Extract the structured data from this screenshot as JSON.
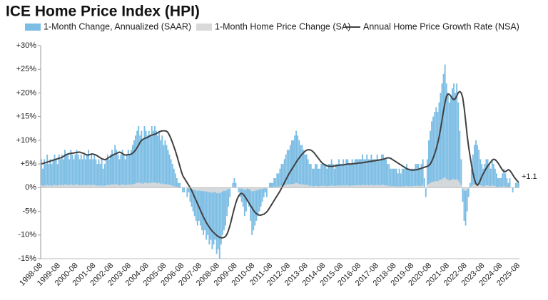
{
  "chart_data": {
    "type": "bar",
    "title": "ICE Home Price Index (HPI)",
    "categories": [
      "1998-08",
      null,
      null,
      null,
      null,
      null,
      null,
      null,
      null,
      null,
      null,
      null,
      "1999-08",
      null,
      null,
      null,
      null,
      null,
      null,
      null,
      null,
      null,
      null,
      null,
      "2000-08",
      null,
      null,
      null,
      null,
      null,
      null,
      null,
      null,
      null,
      null,
      null,
      "2001-08",
      null,
      null,
      null,
      null,
      null,
      null,
      null,
      null,
      null,
      null,
      null,
      "2002-08",
      null,
      null,
      null,
      null,
      null,
      null,
      null,
      null,
      null,
      null,
      null,
      "2003-08",
      null,
      null,
      null,
      null,
      null,
      null,
      null,
      null,
      null,
      null,
      null,
      "2004-08",
      null,
      null,
      null,
      null,
      null,
      null,
      null,
      null,
      null,
      null,
      null,
      "2005-08",
      null,
      null,
      null,
      null,
      null,
      null,
      null,
      null,
      null,
      null,
      null,
      "2006-08",
      null,
      null,
      null,
      null,
      null,
      null,
      null,
      null,
      null,
      null,
      null,
      "2007-08",
      null,
      null,
      null,
      null,
      null,
      null,
      null,
      null,
      null,
      null,
      null,
      "2008-08",
      null,
      null,
      null,
      null,
      null,
      null,
      null,
      null,
      null,
      null,
      null,
      "2009-08",
      null,
      null,
      null,
      null,
      null,
      null,
      null,
      null,
      null,
      null,
      null,
      "2010-08",
      null,
      null,
      null,
      null,
      null,
      null,
      null,
      null,
      null,
      null,
      null,
      "2011-08",
      null,
      null,
      null,
      null,
      null,
      null,
      null,
      null,
      null,
      null,
      null,
      "2012-08",
      null,
      null,
      null,
      null,
      null,
      null,
      null,
      null,
      null,
      null,
      null,
      "2013-08",
      null,
      null,
      null,
      null,
      null,
      null,
      null,
      null,
      null,
      null,
      null,
      "2014-08",
      null,
      null,
      null,
      null,
      null,
      null,
      null,
      null,
      null,
      null,
      null,
      "2015-08",
      null,
      null,
      null,
      null,
      null,
      null,
      null,
      null,
      null,
      null,
      null,
      "2016-08",
      null,
      null,
      null,
      null,
      null,
      null,
      null,
      null,
      null,
      null,
      null,
      "2017-08",
      null,
      null,
      null,
      null,
      null,
      null,
      null,
      null,
      null,
      null,
      null,
      "2018-08",
      null,
      null,
      null,
      null,
      null,
      null,
      null,
      null,
      null,
      null,
      null,
      "2019-08",
      null,
      null,
      null,
      null,
      null,
      null,
      null,
      null,
      null,
      null,
      null,
      "2020-08",
      null,
      null,
      null,
      null,
      null,
      null,
      null,
      null,
      null,
      null,
      null,
      "2021-08",
      null,
      null,
      null,
      null,
      null,
      null,
      null,
      null,
      null,
      null,
      null,
      "2022-08",
      null,
      null,
      null,
      null,
      null,
      null,
      null,
      null,
      null,
      null,
      null,
      "2023-08",
      null,
      null,
      null,
      null,
      null,
      null,
      null,
      null,
      null,
      null,
      null,
      "2024-08",
      null,
      null,
      null,
      null,
      null,
      null,
      null,
      null,
      null,
      null,
      null,
      "2025-08"
    ],
    "series": [
      {
        "name": "1-Month Change, Annualized (SAAR)",
        "type": "bar",
        "color": "#7cbde4",
        "values": [
          6,
          4,
          6,
          5,
          7,
          5,
          6,
          5,
          6,
          7,
          6,
          5,
          7,
          6,
          7,
          6,
          8,
          7,
          7,
          6,
          8,
          7,
          6,
          7,
          8,
          7,
          6,
          7,
          6,
          7,
          6,
          7,
          8,
          6,
          7,
          6,
          7,
          6,
          5,
          6,
          5,
          6,
          4,
          5,
          6,
          7,
          6,
          7,
          8,
          7,
          9,
          8,
          7,
          6,
          7,
          8,
          7,
          6,
          7,
          8,
          7,
          8,
          9,
          10,
          11,
          12,
          13,
          11,
          12,
          10,
          13,
          12,
          11,
          12,
          11,
          13,
          12,
          13,
          12,
          11,
          12,
          10,
          11,
          9,
          10,
          9,
          8,
          7,
          6,
          5,
          4,
          3,
          2,
          1,
          1,
          0,
          -1,
          -1,
          0,
          -2,
          -1,
          -3,
          -4,
          -5,
          -6,
          -7,
          -8,
          -7,
          -8,
          -9,
          -10,
          -9,
          -11,
          -10,
          -12,
          -11,
          -13,
          -12,
          -11,
          -14,
          -13,
          -15,
          -12,
          -10,
          -9,
          -8,
          -6,
          -4,
          -2,
          0,
          1,
          2,
          1,
          0,
          -1,
          -2,
          -3,
          -4,
          -6,
          -5,
          -3,
          -4,
          -7,
          -10,
          -9,
          -8,
          -7,
          -6,
          -5,
          -4,
          -3,
          -2,
          -1,
          -2,
          0,
          1,
          1,
          1,
          2,
          2,
          3,
          3,
          4,
          5,
          5,
          6,
          7,
          8,
          8,
          9,
          10,
          10,
          11,
          12,
          11,
          10,
          9,
          9,
          8,
          7,
          7,
          6,
          5,
          5,
          4,
          4,
          5,
          5,
          4,
          4,
          5,
          5,
          5,
          5,
          4,
          5,
          5,
          6,
          5,
          4,
          5,
          5,
          6,
          5,
          5,
          6,
          5,
          6,
          6,
          5,
          5,
          6,
          5,
          6,
          6,
          6,
          6,
          6,
          7,
          6,
          6,
          7,
          6,
          6,
          7,
          6,
          6,
          6,
          7,
          6,
          6,
          7,
          7,
          6,
          6,
          5,
          5,
          4,
          4,
          4,
          4,
          4,
          3,
          4,
          3,
          4,
          4,
          4,
          5,
          4,
          4,
          4,
          4,
          4,
          5,
          5,
          5,
          4,
          5,
          6,
          2,
          -2,
          6,
          10,
          12,
          14,
          15,
          16,
          17,
          16,
          18,
          20,
          22,
          24,
          26,
          22,
          20,
          18,
          19,
          21,
          22,
          20,
          22,
          18,
          12,
          6,
          -3,
          -7,
          -8,
          -5,
          -2,
          1,
          4,
          7,
          9,
          10,
          9,
          8,
          6,
          5,
          4,
          5,
          6,
          6,
          5,
          4,
          6,
          5,
          4,
          3,
          2,
          2,
          2,
          3,
          4,
          3,
          2,
          1,
          2,
          0,
          -1,
          0,
          1,
          1,
          1
        ]
      },
      {
        "name": "1-Month Home Price Change (SA)",
        "type": "bar",
        "color": "#d9d9d9",
        "values": [
          0.5,
          0.3,
          0.5,
          0.4,
          0.6,
          0.4,
          0.5,
          0.4,
          0.5,
          0.6,
          0.5,
          0.4,
          0.6,
          0.5,
          0.6,
          0.5,
          0.7,
          0.6,
          0.6,
          0.5,
          0.7,
          0.6,
          0.5,
          0.6,
          0.7,
          0.6,
          0.5,
          0.6,
          0.5,
          0.6,
          0.5,
          0.6,
          0.7,
          0.5,
          0.6,
          0.5,
          0.6,
          0.5,
          0.4,
          0.5,
          0.4,
          0.5,
          0.3,
          0.4,
          0.5,
          0.6,
          0.5,
          0.6,
          0.7,
          0.6,
          0.7,
          0.7,
          0.6,
          0.5,
          0.6,
          0.7,
          0.6,
          0.5,
          0.6,
          0.7,
          0.6,
          0.7,
          0.7,
          0.8,
          0.9,
          1.0,
          1.1,
          0.9,
          1.0,
          0.8,
          1.1,
          1.0,
          0.9,
          1.0,
          0.9,
          1.1,
          1.0,
          1.1,
          1.0,
          0.9,
          1.0,
          0.8,
          0.9,
          0.7,
          0.8,
          0.7,
          0.7,
          0.6,
          0.5,
          0.4,
          0.3,
          0.2,
          0.2,
          0.1,
          0.1,
          0,
          -0.1,
          -0.1,
          0,
          -0.2,
          -0.1,
          -0.2,
          -0.3,
          -0.4,
          -0.5,
          -0.6,
          -0.7,
          -0.6,
          -0.7,
          -0.7,
          -0.8,
          -0.7,
          -0.9,
          -0.8,
          -1.0,
          -0.9,
          -1.1,
          -1.0,
          -0.9,
          -1.2,
          -1.1,
          -1.2,
          -1.0,
          -0.8,
          -0.7,
          -0.7,
          -0.5,
          -0.3,
          -0.2,
          0,
          0.1,
          0.2,
          0.1,
          0,
          -0.1,
          -0.2,
          -0.2,
          -0.3,
          -0.5,
          -0.4,
          -0.2,
          -0.3,
          -0.6,
          -0.8,
          -0.7,
          -0.7,
          -0.6,
          -0.5,
          -0.4,
          -0.3,
          -0.2,
          -0.2,
          -0.1,
          -0.2,
          0,
          0.1,
          0.1,
          0.1,
          0.2,
          0.2,
          0.2,
          0.2,
          0.3,
          0.4,
          0.4,
          0.5,
          0.6,
          0.7,
          0.7,
          0.7,
          0.8,
          0.8,
          0.9,
          1.0,
          0.9,
          0.8,
          0.7,
          0.7,
          0.7,
          0.6,
          0.6,
          0.5,
          0.4,
          0.4,
          0.3,
          0.3,
          0.4,
          0.4,
          0.3,
          0.3,
          0.4,
          0.4,
          0.4,
          0.4,
          0.3,
          0.4,
          0.4,
          0.5,
          0.4,
          0.3,
          0.4,
          0.4,
          0.5,
          0.4,
          0.4,
          0.5,
          0.4,
          0.5,
          0.5,
          0.4,
          0.4,
          0.5,
          0.4,
          0.5,
          0.5,
          0.5,
          0.5,
          0.5,
          0.6,
          0.5,
          0.5,
          0.6,
          0.5,
          0.5,
          0.6,
          0.5,
          0.5,
          0.5,
          0.6,
          0.5,
          0.5,
          0.6,
          0.6,
          0.5,
          0.5,
          0.4,
          0.4,
          0.3,
          0.3,
          0.3,
          0.3,
          0.3,
          0.2,
          0.3,
          0.2,
          0.3,
          0.3,
          0.3,
          0.4,
          0.3,
          0.3,
          0.3,
          0.3,
          0.3,
          0.4,
          0.4,
          0.4,
          0.3,
          0.4,
          0.5,
          0.2,
          -0.2,
          0.5,
          0.8,
          1.0,
          1.2,
          1.2,
          1.3,
          1.4,
          1.3,
          1.5,
          1.7,
          1.8,
          2.0,
          2.2,
          1.8,
          1.7,
          1.5,
          1.6,
          1.8,
          1.8,
          1.7,
          1.8,
          1.5,
          1.0,
          0.5,
          -0.2,
          -0.6,
          -0.7,
          -0.4,
          -0.2,
          0.1,
          0.3,
          0.6,
          0.7,
          0.8,
          0.7,
          0.7,
          0.5,
          0.4,
          0.3,
          0.4,
          0.5,
          0.5,
          0.4,
          0.3,
          0.5,
          0.4,
          0.3,
          0.2,
          0.2,
          0.2,
          0.2,
          0.2,
          0.3,
          0.2,
          0.2,
          0.1,
          0.2,
          0,
          -0.1,
          0,
          0.1,
          0.1,
          0.1
        ]
      },
      {
        "name": "Annual Home Price Growth Rate (NSA)",
        "type": "line",
        "color": "#404040",
        "values": [
          5.0,
          5.1,
          5.2,
          5.3,
          5.4,
          5.5,
          5.6,
          5.7,
          5.8,
          5.9,
          6.0,
          6.1,
          6.2,
          6.3,
          6.4,
          6.6,
          6.8,
          7.0,
          7.1,
          7.2,
          7.2,
          7.3,
          7.3,
          7.4,
          7.4,
          7.5,
          7.5,
          7.4,
          7.3,
          7.2,
          7.0,
          6.9,
          6.9,
          7.0,
          7.1,
          7.1,
          7.0,
          6.9,
          6.7,
          6.5,
          6.3,
          6.1,
          6.0,
          5.9,
          6.0,
          6.2,
          6.4,
          6.6,
          6.8,
          7.0,
          7.1,
          7.2,
          7.4,
          7.5,
          7.4,
          7.2,
          7.0,
          6.9,
          6.9,
          7.0,
          7.0,
          7.1,
          7.3,
          7.6,
          8.0,
          8.5,
          9.0,
          9.6,
          10.0,
          10.2,
          10.4,
          10.5,
          10.6,
          10.8,
          11.0,
          11.1,
          11.2,
          11.3,
          11.4,
          11.6,
          11.8,
          11.9,
          12.0,
          12.0,
          12.0,
          11.9,
          11.6,
          11.0,
          10.3,
          9.5,
          8.6,
          7.7,
          6.7,
          5.6,
          4.5,
          3.4,
          2.5,
          2.0,
          1.5,
          1.0,
          0.5,
          0.0,
          -0.6,
          -1.3,
          -2.0,
          -2.7,
          -3.4,
          -4.1,
          -4.8,
          -5.5,
          -6.2,
          -6.8,
          -7.4,
          -7.9,
          -8.4,
          -8.8,
          -9.2,
          -9.5,
          -9.8,
          -10.1,
          -10.3,
          -10.5,
          -10.6,
          -10.6,
          -10.5,
          -10.3,
          -9.8,
          -9.0,
          -8.0,
          -6.8,
          -5.5,
          -4.3,
          -3.2,
          -2.3,
          -1.7,
          -1.3,
          -1.2,
          -1.4,
          -1.8,
          -2.3,
          -2.8,
          -3.3,
          -3.8,
          -4.3,
          -4.8,
          -5.2,
          -5.5,
          -5.7,
          -5.8,
          -5.8,
          -5.7,
          -5.6,
          -5.4,
          -5.1,
          -4.7,
          -4.2,
          -3.7,
          -3.2,
          -2.7,
          -2.2,
          -1.7,
          -1.2,
          -0.7,
          -0.1,
          0.5,
          1.1,
          1.7,
          2.3,
          2.9,
          3.4,
          3.9,
          4.4,
          4.9,
          5.4,
          5.9,
          6.3,
          6.7,
          7.1,
          7.4,
          7.7,
          7.9,
          8.0,
          8.0,
          7.9,
          7.7,
          7.4,
          7.0,
          6.6,
          6.2,
          5.8,
          5.4,
          5.1,
          4.9,
          4.7,
          4.6,
          4.5,
          4.5,
          4.5,
          4.5,
          4.6,
          4.6,
          4.7,
          4.7,
          4.8,
          4.8,
          4.8,
          4.9,
          4.9,
          5.0,
          5.0,
          5.0,
          5.0,
          5.1,
          5.1,
          5.1,
          5.2,
          5.2,
          5.2,
          5.3,
          5.3,
          5.4,
          5.4,
          5.5,
          5.5,
          5.6,
          5.6,
          5.7,
          5.7,
          5.8,
          5.8,
          5.9,
          5.9,
          6.0,
          6.1,
          6.2,
          6.3,
          6.3,
          6.2,
          6.0,
          5.8,
          5.6,
          5.4,
          5.2,
          5.0,
          4.8,
          4.6,
          4.4,
          4.2,
          4.0,
          3.9,
          3.8,
          3.7,
          3.7,
          3.7,
          3.8,
          3.8,
          3.9,
          4.0,
          4.1,
          4.2,
          4.3,
          4.4,
          4.5,
          4.7,
          5.0,
          5.6,
          6.3,
          7.2,
          8.2,
          9.4,
          10.8,
          12.5,
          14.4,
          16.3,
          18.0,
          19.3,
          19.8,
          19.7,
          19.3,
          18.8,
          18.6,
          18.8,
          19.4,
          20.1,
          20.3,
          20.0,
          19.0,
          16.8,
          14.0,
          11.0,
          8.6,
          6.6,
          4.7,
          3.0,
          1.7,
          0.8,
          0.5,
          0.9,
          1.6,
          2.4,
          3.0,
          3.6,
          4.1,
          4.6,
          5.0,
          5.4,
          5.8,
          6.0,
          5.9,
          5.6,
          5.2,
          4.7,
          4.2,
          3.7,
          3.4,
          3.4,
          3.6,
          3.8,
          3.6,
          3.2,
          2.7,
          2.2,
          1.8,
          1.4,
          1.1
        ]
      }
    ],
    "annotation": "+1.1",
    "ylim": [
      -15,
      30
    ],
    "yticks": [
      {
        "value": 30,
        "label": "+30%"
      },
      {
        "value": 25,
        "label": "+25%"
      },
      {
        "value": 20,
        "label": "+20%"
      },
      {
        "value": 15,
        "label": "+15%"
      },
      {
        "value": 10,
        "label": "+10%"
      },
      {
        "value": 5,
        "label": "+5%"
      },
      {
        "value": 0,
        "label": "0%"
      },
      {
        "value": -5,
        "label": "-5%"
      },
      {
        "value": -10,
        "label": "-10%"
      },
      {
        "value": -15,
        "label": "-15%"
      }
    ],
    "grid": false
  }
}
